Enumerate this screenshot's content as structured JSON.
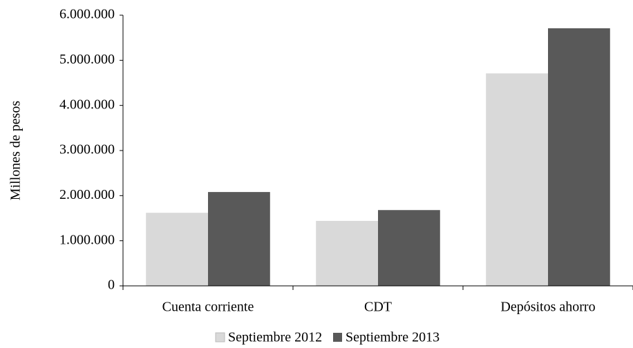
{
  "chart_data": {
    "type": "bar",
    "y_label": "Millones  de pesos",
    "categories": [
      "Cuenta corriente",
      "CDT",
      "Depósitos ahorro"
    ],
    "series": [
      {
        "name": "Septiembre 2012",
        "color": "#d9d9d9",
        "values": [
          1620000,
          1440000,
          4710000
        ]
      },
      {
        "name": "Septiembre 2013",
        "color": "#595959",
        "values": [
          2080000,
          1680000,
          5710000
        ]
      }
    ],
    "ylim": [
      0,
      6000000
    ],
    "yticks": [
      0,
      {
        "value": 1000000,
        "label": "1.000.000"
      },
      {
        "value": 2000000,
        "label": "2.000.000"
      },
      {
        "value": 3000000,
        "label": "3.000.000"
      },
      {
        "value": 4000000,
        "label": "4.000.000"
      },
      {
        "value": 5000000,
        "label": "5.000.000"
      },
      {
        "value": 6000000,
        "label": "6.000.000"
      }
    ],
    "legend": "bottom"
  }
}
